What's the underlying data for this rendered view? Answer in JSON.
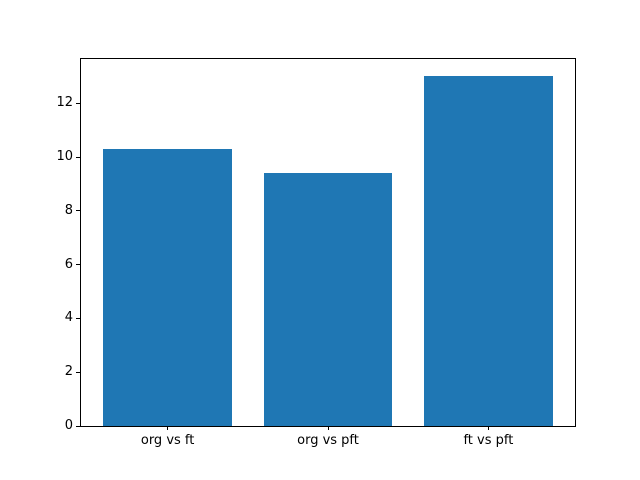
{
  "figure": {
    "background": "#ffffff",
    "text_color": "#000000",
    "spine_color": "#000000",
    "bar_color": "#1f77b4"
  },
  "chart_data": {
    "type": "bar",
    "title": "",
    "xlabel": "",
    "ylabel": "",
    "categories": [
      "org vs ft",
      "org vs pft",
      "ft vs pft"
    ],
    "values": [
      10.3,
      9.4,
      13.0
    ],
    "yticks": [
      0,
      2,
      4,
      6,
      8,
      10,
      12
    ],
    "ylim": [
      0,
      13.65
    ],
    "xlim": [
      -0.54,
      2.54
    ],
    "bar_width": 0.8,
    "grid": false,
    "legend": false
  }
}
